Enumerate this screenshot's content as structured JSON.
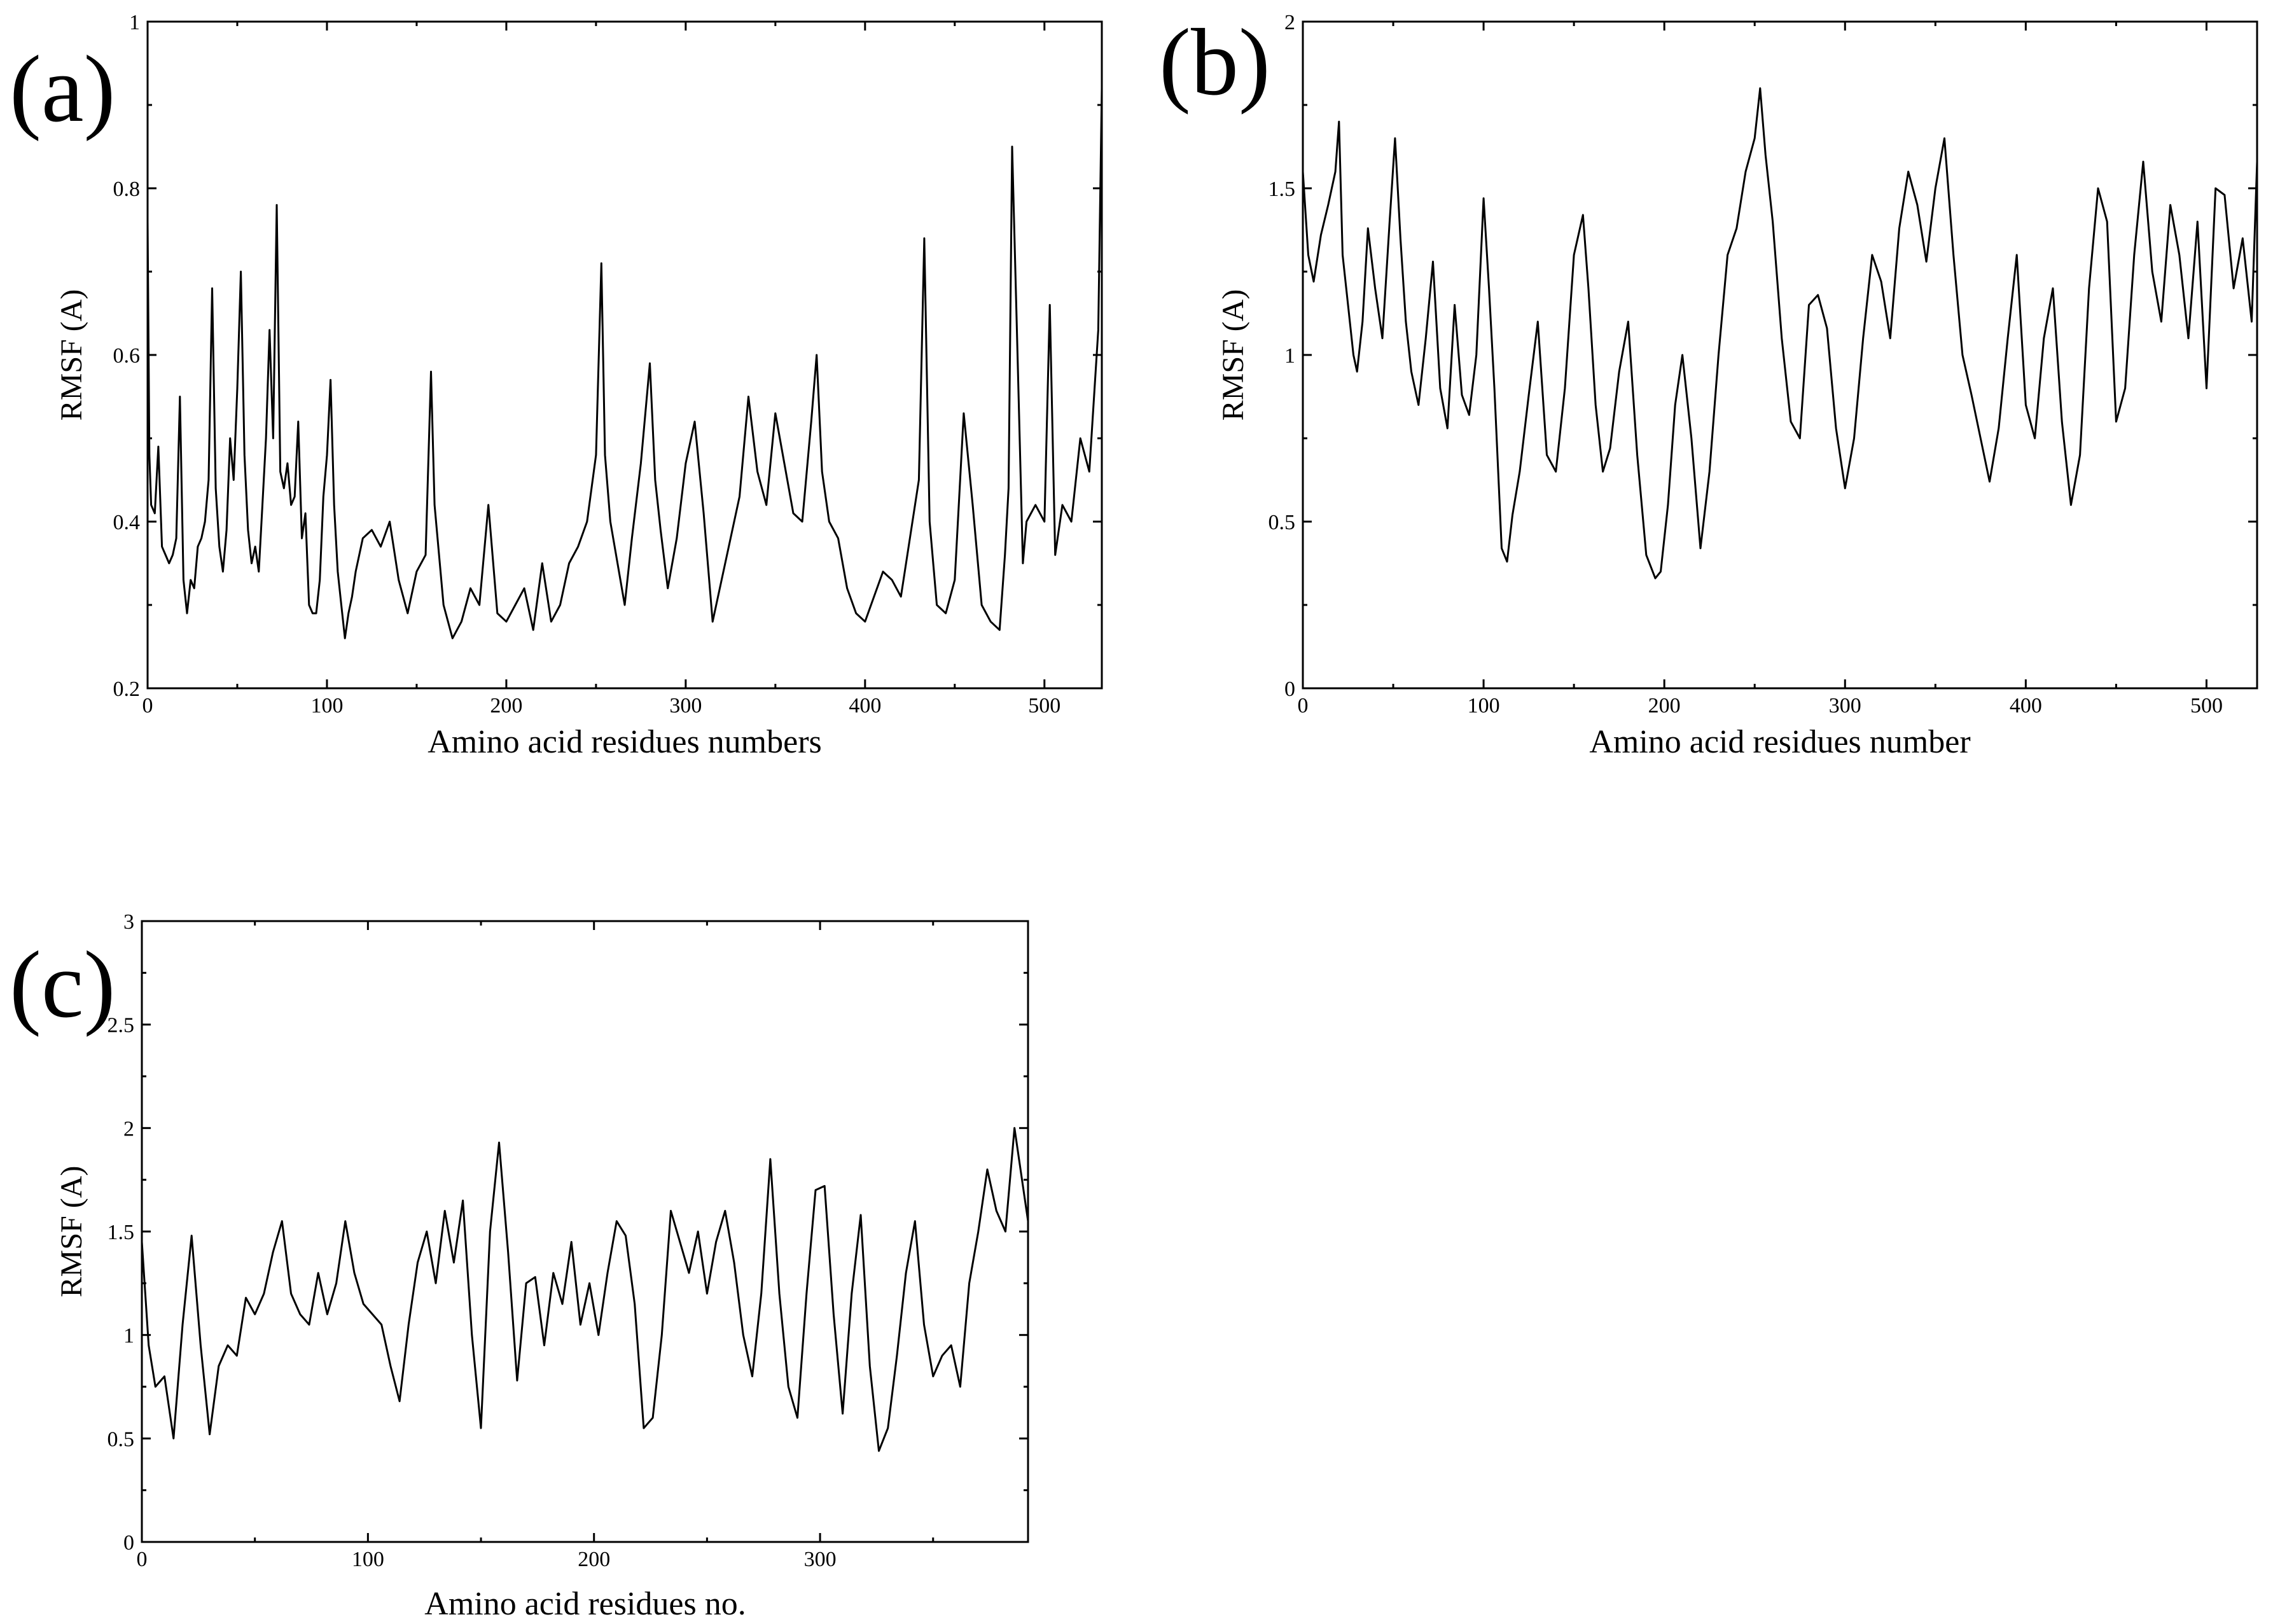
{
  "chart_data": [
    {
      "type": "line",
      "panel_label": "(a)",
      "xlabel": "Amino acid residues numbers",
      "ylabel": "RMSF (A)",
      "xlim": [
        0,
        532
      ],
      "ylim": [
        0.2,
        1.0
      ],
      "xticks": [
        0,
        100,
        200,
        300,
        400,
        500
      ],
      "xtick_labels": [
        "0",
        "100",
        "200",
        "300",
        "400",
        "500"
      ],
      "yticks": [
        0.2,
        0.4,
        0.6,
        0.8,
        1.0
      ],
      "ytick_labels": [
        "0.2",
        "0.4",
        "0.6",
        "0.8",
        "1"
      ],
      "grid": false,
      "series": [
        {
          "x": [
            0,
            1,
            2,
            4,
            6,
            8,
            10,
            12,
            14,
            16,
            18,
            20,
            22,
            24,
            26,
            28,
            30,
            32,
            34,
            36,
            38,
            40,
            42,
            44,
            46,
            48,
            50,
            52,
            54,
            56,
            58,
            60,
            62,
            64,
            66,
            68,
            70,
            72,
            74,
            76,
            78,
            80,
            82,
            84,
            86,
            88,
            90,
            92,
            94,
            96,
            98,
            100,
            102,
            104,
            106,
            108,
            110,
            112,
            114,
            116,
            118,
            120,
            125,
            130,
            135,
            140,
            145,
            150,
            155,
            158,
            160,
            165,
            170,
            175,
            180,
            185,
            190,
            195,
            200,
            205,
            210,
            215,
            220,
            225,
            230,
            235,
            240,
            245,
            250,
            253,
            255,
            258,
            262,
            266,
            270,
            275,
            280,
            283,
            286,
            290,
            295,
            300,
            305,
            310,
            315,
            320,
            325,
            330,
            335,
            340,
            345,
            350,
            355,
            360,
            365,
            370,
            373,
            376,
            380,
            385,
            390,
            395,
            400,
            405,
            410,
            415,
            420,
            425,
            430,
            433,
            436,
            440,
            445,
            450,
            455,
            460,
            465,
            470,
            475,
            478,
            480,
            482,
            485,
            488,
            490,
            495,
            500,
            503,
            506,
            510,
            515,
            520,
            525,
            530,
            532
          ],
          "y": [
            0.76,
            0.48,
            0.42,
            0.41,
            0.49,
            0.37,
            0.36,
            0.35,
            0.36,
            0.38,
            0.55,
            0.33,
            0.29,
            0.33,
            0.32,
            0.37,
            0.38,
            0.4,
            0.45,
            0.68,
            0.44,
            0.37,
            0.34,
            0.39,
            0.5,
            0.45,
            0.56,
            0.7,
            0.48,
            0.39,
            0.35,
            0.37,
            0.34,
            0.42,
            0.5,
            0.63,
            0.5,
            0.78,
            0.46,
            0.44,
            0.47,
            0.42,
            0.43,
            0.52,
            0.38,
            0.41,
            0.3,
            0.29,
            0.29,
            0.33,
            0.43,
            0.48,
            0.57,
            0.42,
            0.34,
            0.3,
            0.26,
            0.29,
            0.31,
            0.34,
            0.36,
            0.38,
            0.39,
            0.37,
            0.4,
            0.33,
            0.29,
            0.34,
            0.36,
            0.58,
            0.42,
            0.3,
            0.26,
            0.28,
            0.32,
            0.3,
            0.42,
            0.29,
            0.28,
            0.3,
            0.32,
            0.27,
            0.35,
            0.28,
            0.3,
            0.35,
            0.37,
            0.4,
            0.48,
            0.71,
            0.48,
            0.4,
            0.35,
            0.3,
            0.38,
            0.47,
            0.59,
            0.45,
            0.39,
            0.32,
            0.38,
            0.47,
            0.52,
            0.41,
            0.28,
            0.33,
            0.38,
            0.43,
            0.55,
            0.46,
            0.42,
            0.53,
            0.47,
            0.41,
            0.4,
            0.52,
            0.6,
            0.46,
            0.4,
            0.38,
            0.32,
            0.29,
            0.28,
            0.31,
            0.34,
            0.33,
            0.31,
            0.38,
            0.45,
            0.74,
            0.4,
            0.3,
            0.29,
            0.33,
            0.53,
            0.42,
            0.3,
            0.28,
            0.27,
            0.36,
            0.44,
            0.85,
            0.6,
            0.35,
            0.4,
            0.42,
            0.4,
            0.66,
            0.36,
            0.42,
            0.4,
            0.5,
            0.46,
            0.63,
            0.92
          ]
        }
      ]
    },
    {
      "type": "line",
      "panel_label": "(b)",
      "xlabel": "Amino acid residues number",
      "ylabel": "RMSF (A)",
      "xlim": [
        0,
        528
      ],
      "ylim": [
        0,
        2
      ],
      "xticks": [
        0,
        100,
        200,
        300,
        400,
        500
      ],
      "xtick_labels": [
        "0",
        "100",
        "200",
        "300",
        "400",
        "500"
      ],
      "yticks": [
        0,
        0.5,
        1,
        1.5,
        2
      ],
      "ytick_labels": [
        "0",
        "0.5",
        "1",
        "1.5",
        "2"
      ],
      "grid": false,
      "series": [
        {
          "x": [
            0,
            3,
            6,
            10,
            14,
            18,
            20,
            22,
            25,
            28,
            30,
            33,
            36,
            40,
            44,
            48,
            51,
            54,
            57,
            60,
            64,
            68,
            72,
            76,
            80,
            84,
            88,
            92,
            96,
            100,
            103,
            106,
            110,
            113,
            116,
            120,
            125,
            130,
            135,
            140,
            145,
            150,
            155,
            158,
            162,
            166,
            170,
            175,
            180,
            185,
            190,
            195,
            198,
            202,
            206,
            210,
            215,
            220,
            225,
            230,
            235,
            240,
            245,
            250,
            253,
            256,
            260,
            265,
            270,
            275,
            280,
            285,
            290,
            295,
            300,
            305,
            310,
            315,
            320,
            325,
            330,
            335,
            340,
            345,
            350,
            355,
            360,
            365,
            370,
            375,
            380,
            385,
            390,
            395,
            400,
            405,
            410,
            415,
            420,
            425,
            430,
            435,
            440,
            445,
            450,
            455,
            460,
            465,
            470,
            475,
            480,
            485,
            490,
            495,
            500,
            505,
            510,
            515,
            520,
            525,
            528
          ],
          "y": [
            1.55,
            1.3,
            1.22,
            1.36,
            1.45,
            1.55,
            1.7,
            1.3,
            1.15,
            1.0,
            0.95,
            1.1,
            1.38,
            1.2,
            1.05,
            1.4,
            1.65,
            1.35,
            1.1,
            0.95,
            0.85,
            1.05,
            1.28,
            0.9,
            0.78,
            1.15,
            0.88,
            0.82,
            1.0,
            1.47,
            1.2,
            0.9,
            0.42,
            0.38,
            0.52,
            0.65,
            0.88,
            1.1,
            0.7,
            0.65,
            0.9,
            1.3,
            1.42,
            1.2,
            0.85,
            0.65,
            0.72,
            0.95,
            1.1,
            0.7,
            0.4,
            0.33,
            0.35,
            0.55,
            0.85,
            1.0,
            0.75,
            0.42,
            0.65,
            1.0,
            1.3,
            1.38,
            1.55,
            1.65,
            1.8,
            1.6,
            1.4,
            1.05,
            0.8,
            0.75,
            1.15,
            1.18,
            1.08,
            0.78,
            0.6,
            0.75,
            1.05,
            1.3,
            1.22,
            1.05,
            1.38,
            1.55,
            1.45,
            1.28,
            1.5,
            1.65,
            1.3,
            1.0,
            0.88,
            0.75,
            0.62,
            0.78,
            1.05,
            1.3,
            0.85,
            0.75,
            1.05,
            1.2,
            0.8,
            0.55,
            0.7,
            1.2,
            1.5,
            1.4,
            0.8,
            0.9,
            1.3,
            1.58,
            1.25,
            1.1,
            1.45,
            1.3,
            1.05,
            1.4,
            0.9,
            1.5,
            1.48,
            1.2,
            1.35,
            1.1,
            1.58
          ]
        }
      ]
    },
    {
      "type": "line",
      "panel_label": "(c)",
      "xlabel": "Amino acid residues no.",
      "ylabel": "RMSF (A)",
      "xlim": [
        0,
        392
      ],
      "ylim": [
        0,
        3
      ],
      "xticks": [
        0,
        100,
        200,
        300
      ],
      "xtick_labels": [
        "0",
        "100",
        "200",
        "300"
      ],
      "yticks": [
        0,
        0.5,
        1,
        1.5,
        2,
        2.5,
        3
      ],
      "ytick_labels": [
        "0",
        "0.5",
        "1",
        "1.5",
        "2",
        "2.5",
        "3"
      ],
      "grid": false,
      "series": [
        {
          "x": [
            0,
            3,
            6,
            10,
            14,
            18,
            22,
            26,
            30,
            34,
            38,
            42,
            46,
            50,
            54,
            58,
            62,
            66,
            70,
            74,
            78,
            82,
            86,
            90,
            94,
            98,
            102,
            106,
            110,
            114,
            118,
            122,
            126,
            130,
            134,
            138,
            142,
            146,
            150,
            154,
            158,
            162,
            166,
            170,
            174,
            178,
            182,
            186,
            190,
            194,
            198,
            202,
            206,
            210,
            214,
            218,
            222,
            226,
            230,
            234,
            238,
            242,
            246,
            250,
            254,
            258,
            262,
            266,
            270,
            274,
            278,
            282,
            286,
            290,
            294,
            298,
            302,
            306,
            310,
            314,
            318,
            322,
            326,
            330,
            334,
            338,
            342,
            346,
            350,
            354,
            358,
            362,
            366,
            370,
            374,
            378,
            382,
            386,
            390,
            392
          ],
          "y": [
            1.45,
            0.95,
            0.75,
            0.8,
            0.5,
            1.05,
            1.48,
            0.95,
            0.52,
            0.85,
            0.95,
            0.9,
            1.18,
            1.1,
            1.2,
            1.4,
            1.55,
            1.2,
            1.1,
            1.05,
            1.3,
            1.1,
            1.25,
            1.55,
            1.3,
            1.15,
            1.1,
            1.05,
            0.85,
            0.68,
            1.05,
            1.35,
            1.5,
            1.25,
            1.6,
            1.35,
            1.65,
            1.0,
            0.55,
            1.5,
            1.93,
            1.4,
            0.78,
            1.25,
            1.28,
            0.95,
            1.3,
            1.15,
            1.45,
            1.05,
            1.25,
            1.0,
            1.3,
            1.55,
            1.48,
            1.15,
            0.55,
            0.6,
            1.0,
            1.6,
            1.45,
            1.3,
            1.5,
            1.2,
            1.45,
            1.6,
            1.35,
            1.0,
            0.8,
            1.2,
            1.85,
            1.2,
            0.75,
            0.6,
            1.2,
            1.7,
            1.72,
            1.1,
            0.62,
            1.2,
            1.58,
            0.85,
            0.44,
            0.55,
            0.9,
            1.3,
            1.55,
            1.05,
            0.8,
            0.9,
            0.95,
            0.75,
            1.25,
            1.5,
            1.8,
            1.6,
            1.5,
            2.0,
            1.7,
            1.55
          ]
        }
      ]
    }
  ]
}
